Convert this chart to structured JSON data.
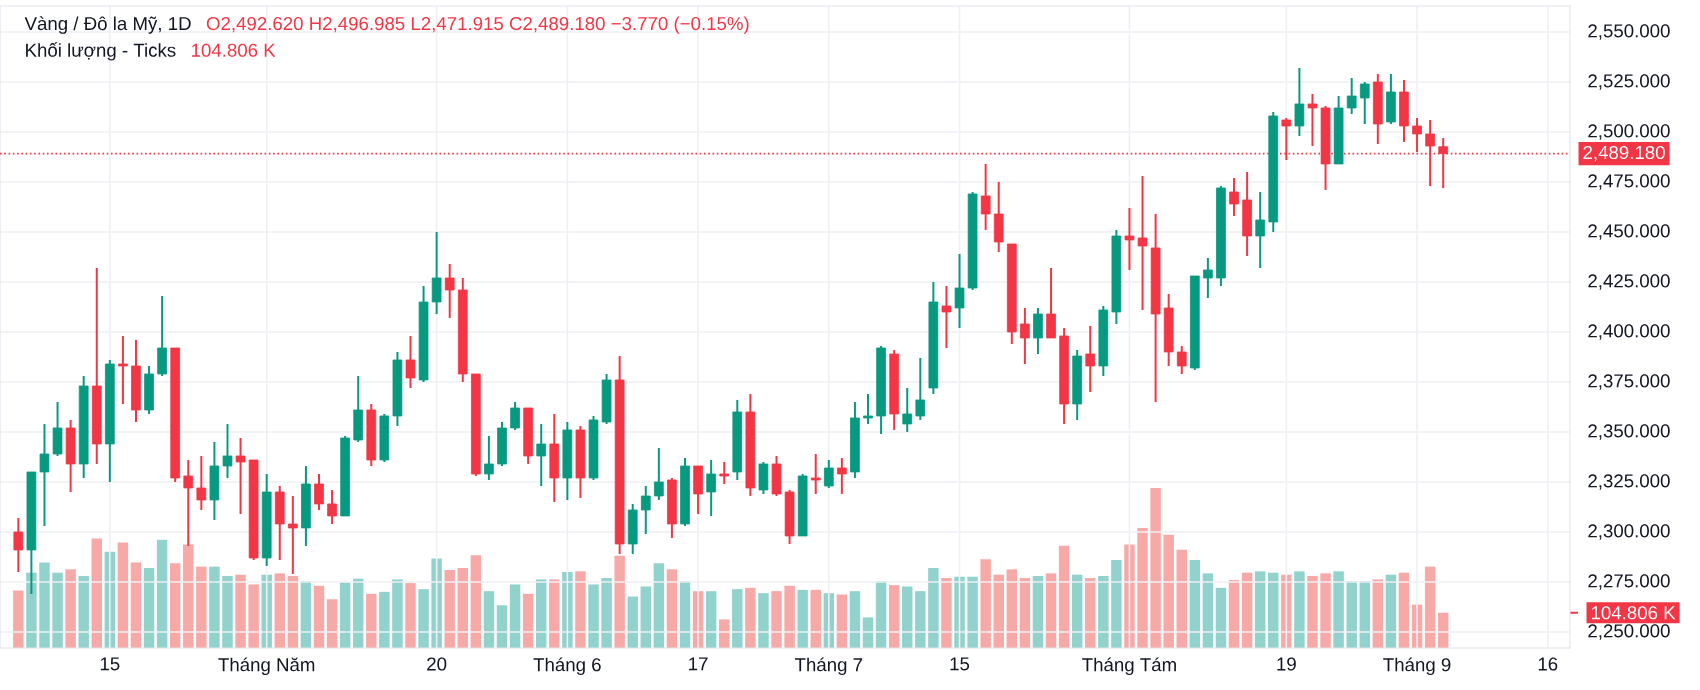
{
  "chart_data": {
    "type": "candlestick",
    "title": "Vàng / Đô la Mỹ, 1D",
    "subtitle": "Khối lượng - Ticks",
    "annotations": [
      "O2,492.620 H2,496.985 L2,471.915 C2,489.180 −3.770 (−0.15%)",
      "104.806 K"
    ],
    "categories": [
      null,
      null,
      null,
      null,
      null,
      null,
      null,
      "15",
      null,
      null,
      null,
      null,
      null,
      null,
      null,
      null,
      null,
      null,
      null,
      "Tháng Năm",
      null,
      null,
      null,
      null,
      null,
      null,
      null,
      null,
      null,
      null,
      null,
      null,
      "20",
      null,
      null,
      null,
      null,
      null,
      null,
      null,
      null,
      null,
      "Tháng 6",
      null,
      null,
      null,
      null,
      null,
      null,
      null,
      null,
      null,
      "17",
      null,
      null,
      null,
      null,
      null,
      null,
      null,
      null,
      null,
      "Tháng 7",
      null,
      null,
      null,
      null,
      null,
      null,
      null,
      null,
      null,
      "15",
      null,
      null,
      null,
      null,
      null,
      null,
      null,
      null,
      null,
      null,
      null,
      null,
      "Tháng Tám",
      null,
      null,
      null,
      null,
      null,
      null,
      null,
      null,
      null,
      null,
      null,
      "19",
      null,
      null,
      null,
      null,
      null,
      null,
      null,
      null,
      null,
      "Tháng 9",
      null,
      null,
      null,
      null,
      null,
      null,
      null,
      null,
      null,
      "16"
    ],
    "ohlc": [
      [
        2300,
        2307,
        2280,
        2291
      ],
      [
        2291,
        2330,
        2269,
        2330
      ],
      [
        2330,
        2354,
        2303,
        2339
      ],
      [
        2339,
        2365,
        2338,
        2352
      ],
      [
        2352,
        2356,
        2320,
        2334
      ],
      [
        2334,
        2378,
        2327,
        2373
      ],
      [
        2373,
        2432,
        2334,
        2344
      ],
      [
        2344,
        2386,
        2325,
        2384
      ],
      [
        2384,
        2398,
        2364,
        2383
      ],
      [
        2383,
        2396,
        2355,
        2361
      ],
      [
        2361,
        2383,
        2359,
        2379
      ],
      [
        2379,
        2418,
        2378,
        2392
      ],
      [
        2392,
        2392,
        2325,
        2327
      ],
      [
        2328,
        2336,
        2293,
        2322
      ],
      [
        2322,
        2338,
        2311,
        2316
      ],
      [
        2316,
        2345,
        2306,
        2333
      ],
      [
        2333,
        2354,
        2327,
        2338
      ],
      [
        2338,
        2347,
        2309,
        2335
      ],
      [
        2336,
        2336,
        2286,
        2287
      ],
      [
        2287,
        2329,
        2283,
        2320
      ],
      [
        2320,
        2323,
        2286,
        2304
      ],
      [
        2304,
        2318,
        2279,
        2302
      ],
      [
        2302,
        2333,
        2293,
        2324
      ],
      [
        2324,
        2329,
        2311,
        2314
      ],
      [
        2314,
        2321,
        2304,
        2308
      ],
      [
        2308,
        2348,
        2308,
        2347
      ],
      [
        2346,
        2378,
        2345,
        2361
      ],
      [
        2361,
        2364,
        2333,
        2336
      ],
      [
        2336,
        2359,
        2335,
        2358
      ],
      [
        2358,
        2390,
        2353,
        2386
      ],
      [
        2386,
        2398,
        2372,
        2377
      ],
      [
        2376,
        2423,
        2375,
        2415
      ],
      [
        2415,
        2450,
        2409,
        2427
      ],
      [
        2427,
        2434,
        2407,
        2421
      ],
      [
        2421,
        2427,
        2375,
        2379
      ],
      [
        2379,
        2379,
        2328,
        2329
      ],
      [
        2329,
        2348,
        2326,
        2334
      ],
      [
        2334,
        2355,
        2333,
        2352
      ],
      [
        2352,
        2365,
        2351,
        2362
      ],
      [
        2362,
        2362,
        2334,
        2338
      ],
      [
        2338,
        2354,
        2323,
        2344
      ],
      [
        2344,
        2359,
        2315,
        2327
      ],
      [
        2327,
        2355,
        2316,
        2351
      ],
      [
        2351,
        2353,
        2317,
        2327
      ],
      [
        2327,
        2358,
        2326,
        2356
      ],
      [
        2355,
        2379,
        2354,
        2376
      ],
      [
        2376,
        2388,
        2289,
        2294
      ],
      [
        2294,
        2314,
        2289,
        2311
      ],
      [
        2311,
        2323,
        2299,
        2318
      ],
      [
        2318,
        2342,
        2316,
        2325
      ],
      [
        2326,
        2327,
        2297,
        2304
      ],
      [
        2304,
        2337,
        2303,
        2333
      ],
      [
        2333,
        2333,
        2309,
        2319
      ],
      [
        2320,
        2336,
        2308,
        2329
      ],
      [
        2329,
        2335,
        2324,
        2328
      ],
      [
        2330,
        2366,
        2326,
        2360
      ],
      [
        2360,
        2369,
        2318,
        2322
      ],
      [
        2321,
        2335,
        2319,
        2334
      ],
      [
        2334,
        2338,
        2318,
        2319
      ],
      [
        2320,
        2321,
        2294,
        2298
      ],
      [
        2298,
        2329,
        2298,
        2328
      ],
      [
        2327,
        2339,
        2319,
        2326
      ],
      [
        2323,
        2336,
        2322,
        2332
      ],
      [
        2332,
        2337,
        2319,
        2329
      ],
      [
        2330,
        2365,
        2327,
        2357
      ],
      [
        2357,
        2369,
        2354,
        2358
      ],
      [
        2358,
        2393,
        2349,
        2392
      ],
      [
        2389,
        2391,
        2351,
        2359
      ],
      [
        2354,
        2372,
        2350,
        2359
      ],
      [
        2358,
        2387,
        2356,
        2366
      ],
      [
        2372,
        2425,
        2369,
        2415
      ],
      [
        2413,
        2423,
        2392,
        2410
      ],
      [
        2412,
        2439,
        2402,
        2422
      ],
      [
        2422,
        2470,
        2421,
        2469
      ],
      [
        2468,
        2484,
        2451,
        2459
      ],
      [
        2459,
        2475,
        2440,
        2445
      ],
      [
        2444,
        2444,
        2394,
        2400
      ],
      [
        2404,
        2412,
        2384,
        2397
      ],
      [
        2397,
        2412,
        2389,
        2409
      ],
      [
        2409,
        2432,
        2397,
        2397
      ],
      [
        2398,
        2402,
        2354,
        2364
      ],
      [
        2364,
        2391,
        2356,
        2388
      ],
      [
        2389,
        2403,
        2370,
        2383
      ],
      [
        2383,
        2413,
        2378,
        2411
      ],
      [
        2410,
        2451,
        2404,
        2448
      ],
      [
        2448,
        2462,
        2431,
        2446
      ],
      [
        2447,
        2478,
        2411,
        2443
      ],
      [
        2442,
        2459,
        2365,
        2409
      ],
      [
        2412,
        2419,
        2383,
        2390
      ],
      [
        2390,
        2393,
        2379,
        2383
      ],
      [
        2382,
        2428,
        2381,
        2428
      ],
      [
        2427,
        2437,
        2417,
        2431
      ],
      [
        2427,
        2473,
        2423,
        2472
      ],
      [
        2470,
        2477,
        2458,
        2464
      ],
      [
        2466,
        2480,
        2438,
        2448
      ],
      [
        2448,
        2470,
        2432,
        2456
      ],
      [
        2455,
        2510,
        2450,
        2508
      ],
      [
        2506,
        2507,
        2486,
        2503
      ],
      [
        2503,
        2532,
        2498,
        2514
      ],
      [
        2514,
        2519,
        2493,
        2512
      ],
      [
        2512,
        2513,
        2471,
        2484
      ],
      [
        2484,
        2518,
        2484,
        2512
      ],
      [
        2512,
        2527,
        2509,
        2518
      ],
      [
        2517,
        2525,
        2504,
        2524
      ],
      [
        2525,
        2529,
        2494,
        2504
      ],
      [
        2505,
        2529,
        2504,
        2520
      ],
      [
        2520,
        2526,
        2495,
        2503
      ],
      [
        2503,
        2507,
        2490,
        2499
      ],
      [
        2499,
        2506,
        2473,
        2493
      ],
      [
        2492.62,
        2496.985,
        2471.915,
        2489.18
      ],
      null,
      null,
      null,
      null,
      null,
      null,
      null,
      null
    ],
    "colors": [
      "#f23645",
      "#089981",
      "#089981",
      "#089981",
      "#f23645",
      "#089981",
      "#f23645",
      "#089981",
      "#f23645",
      "#f23645",
      "#089981",
      "#089981",
      "#f23645",
      "#f23645",
      "#f23645",
      "#089981",
      "#089981",
      "#f23645",
      "#f23645",
      "#089981",
      "#f23645",
      "#f23645",
      "#089981",
      "#f23645",
      "#f23645",
      "#089981",
      "#089981",
      "#f23645",
      "#089981",
      "#089981",
      "#f23645",
      "#089981",
      "#089981",
      "#f23645",
      "#f23645",
      "#f23645",
      "#089981",
      "#089981",
      "#089981",
      "#f23645",
      "#089981",
      "#f23645",
      "#089981",
      "#f23645",
      "#089981",
      "#089981",
      "#f23645",
      "#089981",
      "#089981",
      "#089981",
      "#f23645",
      "#089981",
      "#f23645",
      "#089981",
      "#f23645",
      "#089981",
      "#f23645",
      "#089981",
      "#f23645",
      "#f23645",
      "#089981",
      "#f23645",
      "#089981",
      "#f23645",
      "#089981",
      "#089981",
      "#089981",
      "#f23645",
      "#089981",
      "#089981",
      "#089981",
      "#f23645",
      "#089981",
      "#089981",
      "#f23645",
      "#f23645",
      "#f23645",
      "#f23645",
      "#089981",
      "#f23645",
      "#f23645",
      "#089981",
      "#f23645",
      "#089981",
      "#089981",
      "#f23645",
      "#f23645",
      "#f23645",
      "#f23645",
      "#f23645",
      "#089981",
      "#089981",
      "#089981",
      "#f23645",
      "#f23645",
      "#089981",
      "#089981",
      "#f23645",
      "#089981",
      "#f23645",
      "#f23645",
      "#089981",
      "#089981",
      "#089981",
      "#f23645",
      "#089981",
      "#f23645",
      "#f23645",
      "#f23645",
      "#f23645",
      null,
      null,
      null,
      null,
      null,
      null,
      null,
      null
    ],
    "series": [
      {
        "type": "bar",
        "axis": "y2",
        "values": [
          171,
          224,
          254,
          224,
          234,
          214,
          326,
          286,
          314,
          254,
          238,
          322,
          252,
          308,
          242,
          242,
          214,
          218,
          189,
          218,
          222,
          214,
          199,
          185,
          145,
          195,
          206,
          161,
          167,
          204,
          193,
          175,
          266,
          232,
          238,
          276,
          169,
          127,
          189,
          161,
          204,
          204,
          226,
          228,
          189,
          208,
          274,
          153,
          183,
          252,
          234,
          199,
          169,
          169,
          85,
          175,
          179,
          163,
          169,
          185,
          173,
          173,
          163,
          159,
          169,
          91,
          199,
          187,
          183,
          169,
          238,
          208,
          212,
          212,
          264,
          218,
          234,
          208,
          214,
          222,
          304,
          218,
          208,
          214,
          262,
          308,
          357,
          476,
          337,
          292,
          262,
          222,
          179,
          202,
          224,
          228,
          224,
          218,
          228,
          214,
          222,
          228,
          199,
          199,
          204,
          218,
          224,
          129,
          242,
          104.806,
          null,
          null,
          null,
          null,
          null,
          null,
          null,
          null
        ],
        "colors": [
          "#f7a9a7",
          "#92d2cc",
          "#92d2cc",
          "#92d2cc",
          "#f7a9a7",
          "#92d2cc",
          "#f7a9a7",
          "#92d2cc",
          "#f7a9a7",
          "#f7a9a7",
          "#92d2cc",
          "#92d2cc",
          "#f7a9a7",
          "#f7a9a7",
          "#f7a9a7",
          "#92d2cc",
          "#92d2cc",
          "#f7a9a7",
          "#f7a9a7",
          "#92d2cc",
          "#f7a9a7",
          "#f7a9a7",
          "#92d2cc",
          "#f7a9a7",
          "#f7a9a7",
          "#92d2cc",
          "#92d2cc",
          "#f7a9a7",
          "#92d2cc",
          "#92d2cc",
          "#f7a9a7",
          "#92d2cc",
          "#92d2cc",
          "#f7a9a7",
          "#f7a9a7",
          "#f7a9a7",
          "#92d2cc",
          "#92d2cc",
          "#92d2cc",
          "#f7a9a7",
          "#92d2cc",
          "#f7a9a7",
          "#92d2cc",
          "#f7a9a7",
          "#92d2cc",
          "#92d2cc",
          "#f7a9a7",
          "#92d2cc",
          "#92d2cc",
          "#92d2cc",
          "#f7a9a7",
          "#92d2cc",
          "#f7a9a7",
          "#92d2cc",
          "#f7a9a7",
          "#92d2cc",
          "#f7a9a7",
          "#92d2cc",
          "#f7a9a7",
          "#f7a9a7",
          "#92d2cc",
          "#f7a9a7",
          "#92d2cc",
          "#f7a9a7",
          "#92d2cc",
          "#92d2cc",
          "#92d2cc",
          "#f7a9a7",
          "#92d2cc",
          "#92d2cc",
          "#92d2cc",
          "#f7a9a7",
          "#92d2cc",
          "#92d2cc",
          "#f7a9a7",
          "#f7a9a7",
          "#f7a9a7",
          "#f7a9a7",
          "#92d2cc",
          "#f7a9a7",
          "#f7a9a7",
          "#92d2cc",
          "#f7a9a7",
          "#92d2cc",
          "#92d2cc",
          "#f7a9a7",
          "#f7a9a7",
          "#f7a9a7",
          "#f7a9a7",
          "#f7a9a7",
          "#92d2cc",
          "#92d2cc",
          "#92d2cc",
          "#f7a9a7",
          "#f7a9a7",
          "#92d2cc",
          "#92d2cc",
          "#f7a9a7",
          "#92d2cc",
          "#f7a9a7",
          "#f7a9a7",
          "#92d2cc",
          "#92d2cc",
          "#92d2cc",
          "#f7a9a7",
          "#92d2cc",
          "#f7a9a7",
          "#f7a9a7",
          "#f7a9a7",
          "#f7a9a7",
          null,
          null,
          null,
          null,
          null,
          null,
          null,
          null
        ]
      }
    ],
    "ylim": [
      2242,
      2563
    ],
    "yticks": [
      {
        "value": 2250,
        "label": "2,250.000"
      },
      {
        "value": 2275,
        "label": "2,275.000"
      },
      {
        "value": 2300,
        "label": "2,300.000"
      },
      {
        "value": 2325,
        "label": "2,325.000"
      },
      {
        "value": 2350,
        "label": "2,350.000"
      },
      {
        "value": 2375,
        "label": "2,375.000"
      },
      {
        "value": 2400,
        "label": "2,400.000"
      },
      {
        "value": 2425,
        "label": "2,425.000"
      },
      {
        "value": 2450,
        "label": "2,450.000"
      },
      {
        "value": 2475,
        "label": "2,475.000"
      },
      {
        "value": 2500,
        "label": "2,500.000"
      },
      {
        "value": 2525,
        "label": "2,525.000"
      },
      {
        "value": 2550,
        "label": "2,550.000"
      }
    ],
    "y2lim": [
      0,
      1910
    ],
    "y2ticks": [
      {
        "value": 104.806,
        "label": "104.806 K"
      }
    ],
    "ref_lines": [
      {
        "axis": "y",
        "value": 2489.18,
        "label": "2,489.180",
        "color": "#f23645",
        "line_style": "dotted"
      }
    ],
    "grid": true
  }
}
